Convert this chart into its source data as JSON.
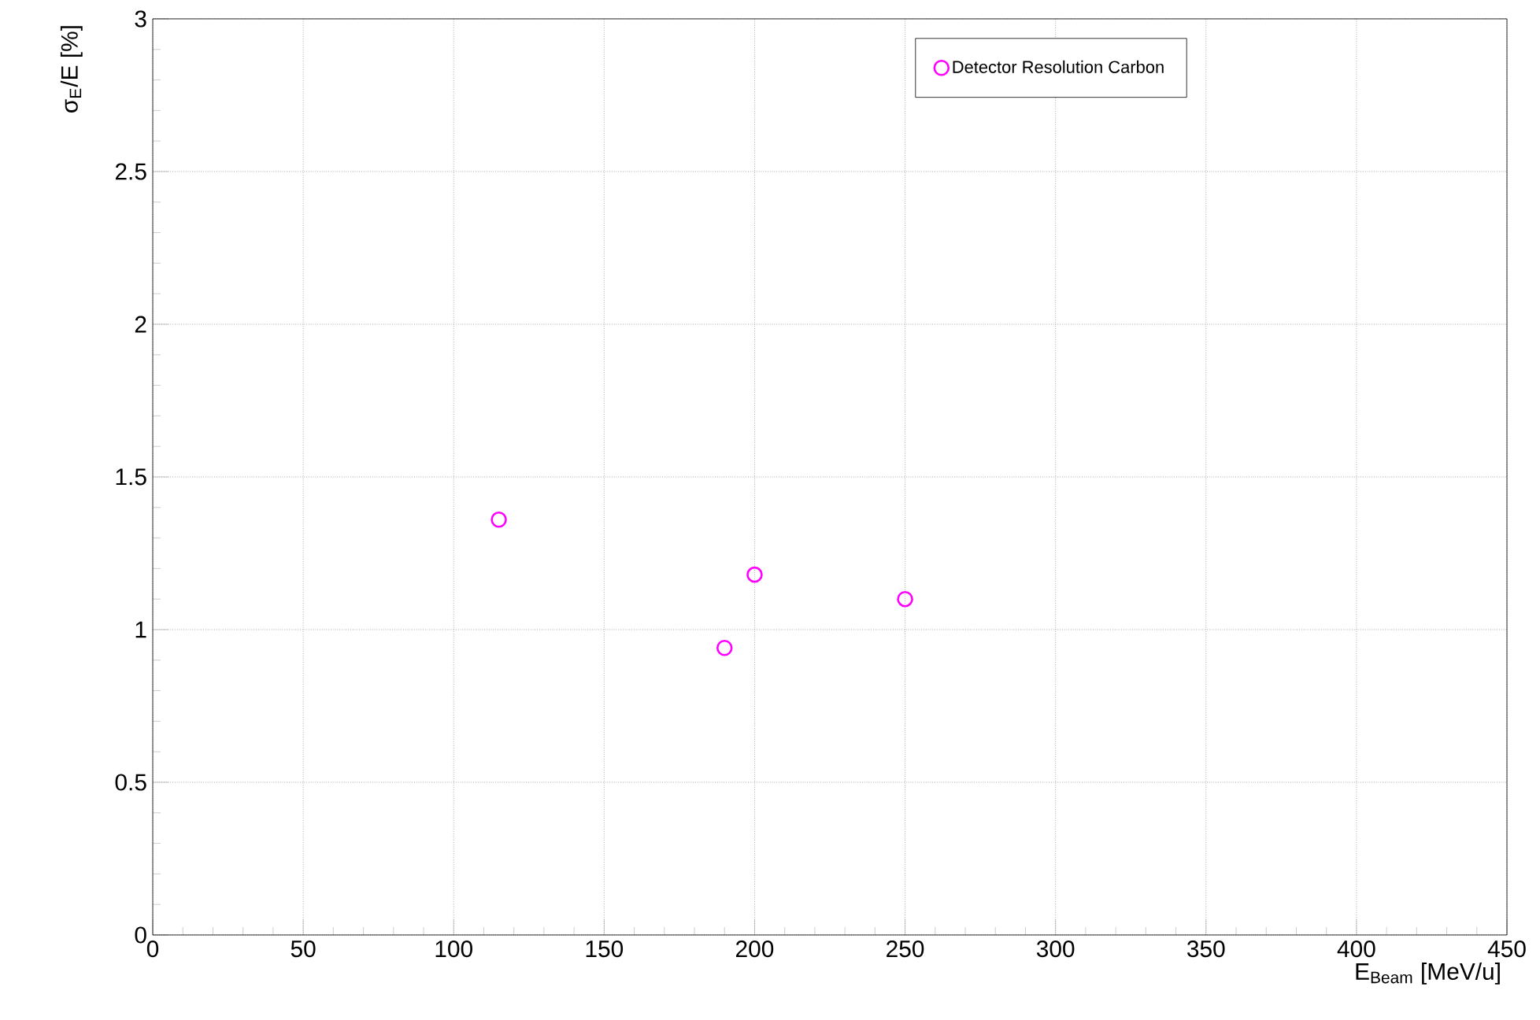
{
  "chart_data": {
    "type": "scatter",
    "xlabel": "E$_{Beam}$ [MeV/u]",
    "ylabel": "σ$_{E}$/E [%]",
    "xlim": [
      0,
      450
    ],
    "xticks": [
      0,
      50,
      100,
      150,
      200,
      250,
      300,
      350,
      400,
      450
    ],
    "ylim": [
      0,
      3
    ],
    "yticks": [
      0,
      0.5,
      1,
      1.5,
      2,
      2.5,
      3
    ],
    "grid": true,
    "legend": "top right",
    "marker": "circle",
    "series": [
      {
        "name": "Detector Resolution Carbon",
        "color": "#ff00ff",
        "x": [
          115,
          190,
          200,
          250
        ],
        "values": [
          1.36,
          0.94,
          1.18,
          1.1
        ]
      }
    ]
  }
}
